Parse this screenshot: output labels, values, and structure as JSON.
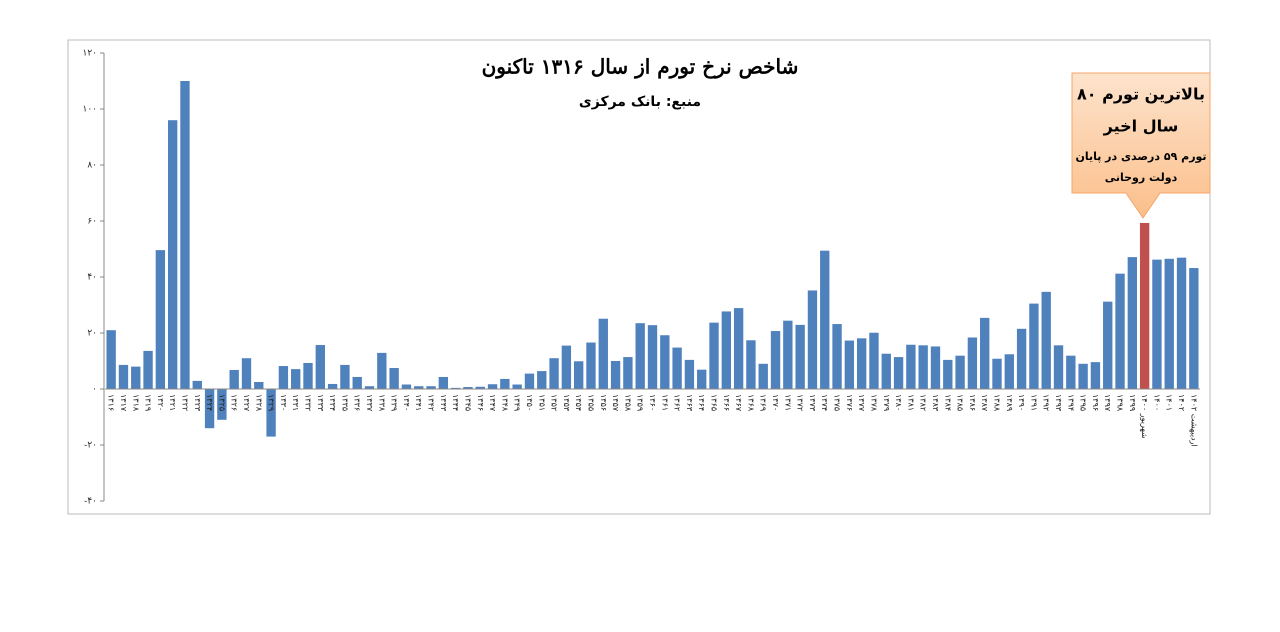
{
  "chart_data": {
    "type": "bar",
    "title": "شاخص نرخ تورم از سال ۱۳۱۶ تاکنون",
    "subtitle": "منبع: بانک مرکزی",
    "categories": [
      "۱۳۱۶",
      "۱۳۱۷",
      "۱۳۱۸",
      "۱۳۱۹",
      "۱۳۲۰",
      "۱۳۲۱",
      "۱۳۲۲",
      "۱۳۲۳",
      "۱۳۲۴",
      "۱۳۲۵",
      "۱۳۲۶",
      "۱۳۲۷",
      "۱۳۲۸",
      "۱۳۲۹",
      "۱۳۳۰",
      "۱۳۳۱",
      "۱۳۳۲",
      "۱۳۳۳",
      "۱۳۳۴",
      "۱۳۳۵",
      "۱۳۳۶",
      "۱۳۳۷",
      "۱۳۳۸",
      "۱۳۳۹",
      "۱۳۴۰",
      "۱۳۴۱",
      "۱۳۴۲",
      "۱۳۴۳",
      "۱۳۴۴",
      "۱۳۴۵",
      "۱۳۴۶",
      "۱۳۴۷",
      "۱۳۴۸",
      "۱۳۴۹",
      "۱۳۵۰",
      "۱۳۵۱",
      "۱۳۵۲",
      "۱۳۵۳",
      "۱۳۵۴",
      "۱۳۵۵",
      "۱۳۵۶",
      "۱۳۵۷",
      "۱۳۵۸",
      "۱۳۵۹",
      "۱۳۶۰",
      "۱۳۶۱",
      "۱۳۶۲",
      "۱۳۶۳",
      "۱۳۶۴",
      "۱۳۶۵",
      "۱۳۶۶",
      "۱۳۶۷",
      "۱۳۶۸",
      "۱۳۶۹",
      "۱۳۷۰",
      "۱۳۷۱",
      "۱۳۷۲",
      "۱۳۷۳",
      "۱۳۷۴",
      "۱۳۷۵",
      "۱۳۷۶",
      "۱۳۷۷",
      "۱۳۷۸",
      "۱۳۷۹",
      "۱۳۸۰",
      "۱۳۸۱",
      "۱۳۸۲",
      "۱۳۸۳",
      "۱۳۸۴",
      "۱۳۸۵",
      "۱۳۸۶",
      "۱۳۸۷",
      "۱۳۸۸",
      "۱۳۸۹",
      "۱۳۹۰",
      "۱۳۹۱",
      "۱۳۹۲",
      "۱۳۹۳",
      "۱۳۹۴",
      "۱۳۹۵",
      "۱۳۹۶",
      "۱۳۹۷",
      "۱۳۹۸",
      "۱۳۹۹",
      "شهریور ۱۴۰۰",
      "۱۴۰۰",
      "۱۴۰۱",
      "۱۴۰۲",
      "اردیبهشت ۱۴۰۲"
    ],
    "values": [
      21,
      8.6,
      8,
      13.6,
      49.6,
      96,
      110,
      2.9,
      -14,
      -11,
      6.8,
      11,
      2.5,
      -17,
      8.2,
      7.1,
      9.3,
      15.7,
      1.8,
      8.6,
      4.3,
      1,
      12.9,
      7.5,
      1.6,
      1,
      1,
      4.3,
      0.4,
      0.7,
      0.8,
      1.7,
      3.6,
      1.6,
      5.5,
      6.4,
      11,
      15.5,
      9.9,
      16.6,
      25.1,
      10,
      11.4,
      23.5,
      22.8,
      19.2,
      14.8,
      10.4,
      6.9,
      23.7,
      27.7,
      28.9,
      17.4,
      9,
      20.7,
      24.4,
      22.9,
      35.2,
      49.4,
      23.2,
      17.3,
      18.1,
      20.1,
      12.6,
      11.4,
      15.8,
      15.6,
      15.2,
      10.4,
      11.9,
      18.4,
      25.4,
      10.8,
      12.4,
      21.5,
      30.5,
      34.7,
      15.6,
      11.9,
      9,
      9.6,
      31.2,
      41.2,
      47.1,
      59.3,
      46.2,
      46.5,
      46.9,
      43.2
    ],
    "bar_colors": [
      "#4f81bd",
      "#4f81bd",
      "#4f81bd",
      "#4f81bd",
      "#4f81bd",
      "#4f81bd",
      "#4f81bd",
      "#4f81bd",
      "#4f81bd",
      "#4f81bd",
      "#4f81bd",
      "#4f81bd",
      "#4f81bd",
      "#4f81bd",
      "#4f81bd",
      "#4f81bd",
      "#4f81bd",
      "#4f81bd",
      "#4f81bd",
      "#4f81bd",
      "#4f81bd",
      "#4f81bd",
      "#4f81bd",
      "#4f81bd",
      "#4f81bd",
      "#4f81bd",
      "#4f81bd",
      "#4f81bd",
      "#4f81bd",
      "#4f81bd",
      "#4f81bd",
      "#4f81bd",
      "#4f81bd",
      "#4f81bd",
      "#4f81bd",
      "#4f81bd",
      "#4f81bd",
      "#4f81bd",
      "#4f81bd",
      "#4f81bd",
      "#4f81bd",
      "#4f81bd",
      "#4f81bd",
      "#4f81bd",
      "#4f81bd",
      "#4f81bd",
      "#4f81bd",
      "#4f81bd",
      "#4f81bd",
      "#4f81bd",
      "#4f81bd",
      "#4f81bd",
      "#4f81bd",
      "#4f81bd",
      "#4f81bd",
      "#4f81bd",
      "#4f81bd",
      "#4f81bd",
      "#4f81bd",
      "#4f81bd",
      "#4f81bd",
      "#4f81bd",
      "#4f81bd",
      "#4f81bd",
      "#4f81bd",
      "#4f81bd",
      "#4f81bd",
      "#4f81bd",
      "#4f81bd",
      "#4f81bd",
      "#4f81bd",
      "#4f81bd",
      "#4f81bd",
      "#4f81bd",
      "#4f81bd",
      "#4f81bd",
      "#4f81bd",
      "#4f81bd",
      "#4f81bd",
      "#4f81bd",
      "#4f81bd",
      "#4f81bd",
      "#4f81bd",
      "#4f81bd",
      "#c0504d",
      "#4f81bd",
      "#4f81bd",
      "#4f81bd",
      "#4f81bd"
    ],
    "ylim": [
      -40,
      120
    ],
    "yticks": [
      {
        "value": -40,
        "label": "-۴۰"
      },
      {
        "value": -20,
        "label": "-۲۰"
      },
      {
        "value": 0,
        "label": "۰"
      },
      {
        "value": 20,
        "label": "۲۰"
      },
      {
        "value": 40,
        "label": "۴۰"
      },
      {
        "value": 60,
        "label": "۶۰"
      },
      {
        "value": 80,
        "label": "۸۰"
      },
      {
        "value": 100,
        "label": "۱۰۰"
      },
      {
        "value": 120,
        "label": "۱۲۰"
      }
    ],
    "annotation": [
      "بالاترین تورم ۸۰",
      "سال اخیر",
      "تورم ۵۹ درصدی در پایان",
      "دولت روحانی"
    ]
  }
}
